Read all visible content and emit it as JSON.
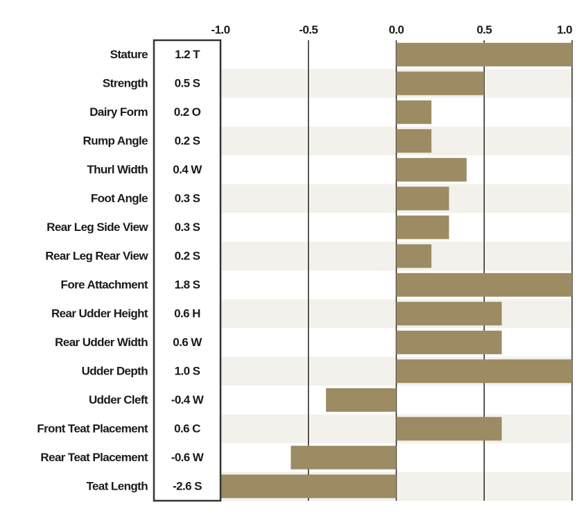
{
  "chart_data": {
    "type": "bar",
    "orientation": "horizontal",
    "categories": [
      "Stature",
      "Strength",
      "Dairy Form",
      "Rump Angle",
      "Thurl Width",
      "Foot Angle",
      "Rear Leg Side View",
      "Rear Leg Rear View",
      "Fore Attachment",
      "Rear Udder Height",
      "Rear Udder Width",
      "Udder Depth",
      "Udder Cleft",
      "Front Teat Placement",
      "Rear Teat Placement",
      "Teat Length"
    ],
    "values": [
      1.2,
      0.5,
      0.2,
      0.2,
      0.4,
      0.3,
      0.3,
      0.2,
      1.8,
      0.6,
      0.6,
      1.0,
      -0.4,
      0.6,
      -0.6,
      -2.6
    ],
    "value_labels": [
      "1.2 T",
      "0.5 S",
      "0.2 O",
      "0.2 S",
      "0.4 W",
      "0.3 S",
      "0.3 S",
      "0.2 S",
      "1.8 S",
      "0.6 H",
      "0.6 W",
      "1.0 S",
      "-0.4 W",
      "0.6 C",
      "-0.6 W",
      "-2.6 S"
    ],
    "color": "#9c8b63",
    "stripe_color": "#f3f1ec",
    "xlim": [
      -1,
      1
    ],
    "xticks": [
      {
        "value": -1,
        "label": "-1.0"
      },
      {
        "value": -0.5,
        "label": "-0.5"
      },
      {
        "value": 0,
        "label": "0.0"
      },
      {
        "value": 0.5,
        "label": "0.5"
      },
      {
        "value": 1,
        "label": "1.0"
      }
    ],
    "grid": true
  }
}
